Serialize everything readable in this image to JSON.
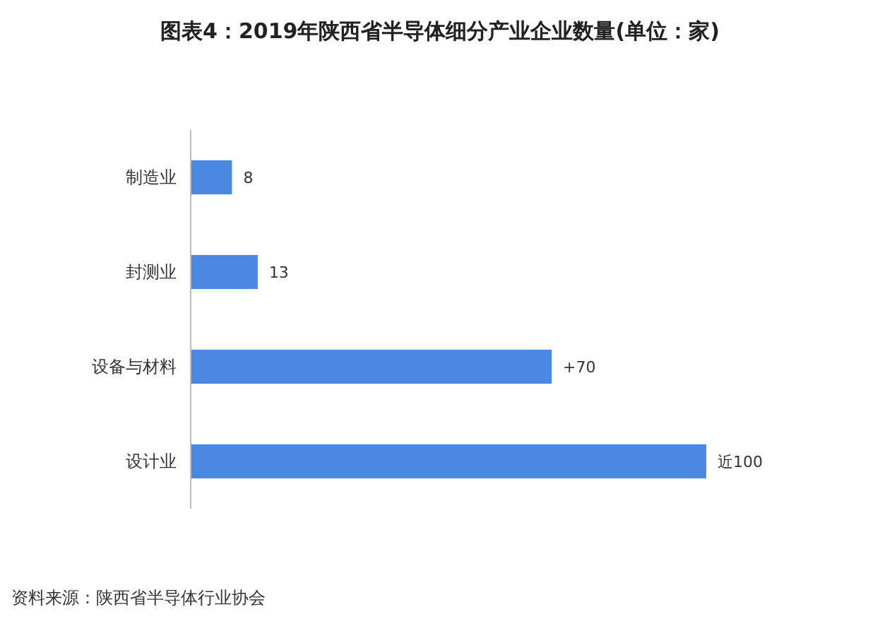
{
  "chart_data": {
    "type": "bar",
    "orientation": "horizontal",
    "title": "图表4：2019年陕西省半导体细分产业企业数量(单位：家)",
    "categories": [
      "制造业",
      "封测业",
      "设备与材料",
      "设计业"
    ],
    "values": [
      8,
      13,
      70,
      100
    ],
    "color": "#4a88e4",
    "value_labels": [
      "8",
      "13",
      "+70",
      "近100"
    ],
    "xlim": [
      0,
      100
    ],
    "tick_labels": "y",
    "annotations": [
      "资料来源：陕西省半导体行业协会"
    ]
  }
}
